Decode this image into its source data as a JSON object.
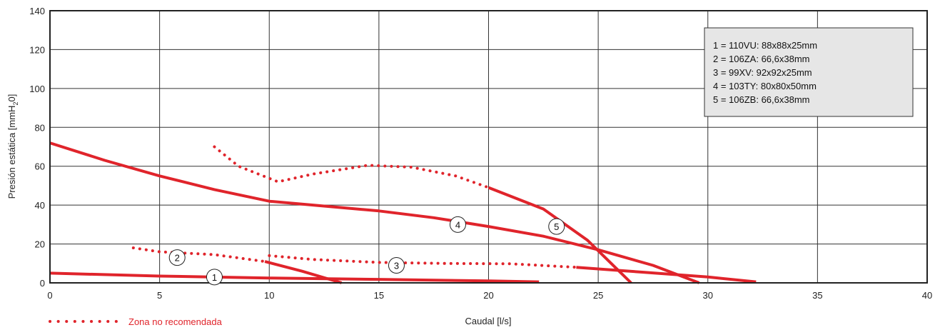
{
  "chart_data": {
    "type": "line",
    "xlabel": "Caudal [l/s]",
    "ylabel": "Presión estática  [mmH",
    "ylabel_sub": "2",
    "ylabel_tail": "0]",
    "xlim": [
      0,
      40
    ],
    "ylim": [
      0,
      140
    ],
    "x_ticks": [
      0,
      5,
      10,
      15,
      20,
      25,
      30,
      35,
      40
    ],
    "y_ticks": [
      0,
      20,
      40,
      60,
      80,
      100,
      120,
      140
    ],
    "grid": true,
    "line_color": "#e0242b",
    "legend_box_color": "#e6e6e6",
    "legend_placement": "top-right",
    "legend": [
      "1 = 110VU: 88x88x25mm",
      "2 = 106ZA: 66,6x38mm",
      "3 = 99XV: 92x92x25mm",
      "4 = 103TY: 80x80x50mm",
      "5 = 106ZB: 66,6x38mm"
    ],
    "not_recommended_label": "Zona no recomendada",
    "series": [
      {
        "marker": "1",
        "marker_at": [
          7.5,
          3
        ],
        "dotted": [],
        "solid": [
          [
            0,
            5
          ],
          [
            5,
            3.5
          ],
          [
            10,
            2.5
          ],
          [
            15,
            1.8
          ],
          [
            20,
            1
          ],
          [
            22.3,
            0.5
          ]
        ]
      },
      {
        "marker": "2",
        "marker_at": [
          5.8,
          13
        ],
        "dotted": [
          [
            3.8,
            18
          ],
          [
            5,
            16
          ],
          [
            7.5,
            14.5
          ],
          [
            9.8,
            11
          ]
        ],
        "solid": [
          [
            9.8,
            11
          ],
          [
            11.5,
            6
          ],
          [
            13.3,
            0
          ]
        ]
      },
      {
        "marker": "3",
        "marker_at": [
          15.8,
          9
        ],
        "dotted": [
          [
            10,
            14
          ],
          [
            12,
            12
          ],
          [
            15,
            10.5
          ],
          [
            18,
            10
          ],
          [
            21,
            9.8
          ],
          [
            24,
            8
          ]
        ],
        "solid": [
          [
            24,
            8
          ],
          [
            27,
            5.5
          ],
          [
            30,
            3
          ],
          [
            32.2,
            0.5
          ]
        ]
      },
      {
        "marker": "4",
        "marker_at": [
          18.6,
          30
        ],
        "dotted": [],
        "solid": [
          [
            0,
            72
          ],
          [
            2.5,
            63
          ],
          [
            5,
            55
          ],
          [
            7.5,
            48
          ],
          [
            10,
            42
          ],
          [
            12.5,
            39.5
          ],
          [
            15,
            37
          ],
          [
            17.5,
            33.5
          ],
          [
            20,
            29
          ],
          [
            22.5,
            24
          ],
          [
            25,
            17
          ],
          [
            27.5,
            9
          ],
          [
            29.6,
            0
          ]
        ]
      },
      {
        "marker": "5",
        "marker_at": [
          23.1,
          29
        ],
        "dotted": [
          [
            7.5,
            70
          ],
          [
            8.6,
            60
          ],
          [
            10.4,
            52
          ],
          [
            12,
            56
          ],
          [
            14.5,
            60.5
          ],
          [
            16.5,
            59.5
          ],
          [
            18.5,
            55
          ],
          [
            20,
            49
          ]
        ],
        "solid": [
          [
            20,
            49
          ],
          [
            22.5,
            38
          ],
          [
            24.5,
            22
          ],
          [
            26.5,
            0
          ]
        ]
      }
    ]
  }
}
